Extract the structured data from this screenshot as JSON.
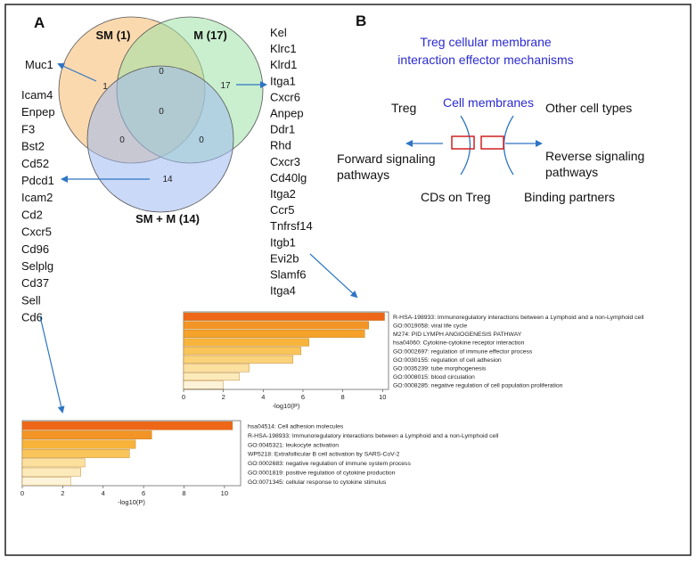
{
  "panel_a": {
    "letter": "A",
    "venn": {
      "sets": [
        {
          "label": "SM (1)",
          "color": "#f9c27e"
        },
        {
          "label": "M (17)",
          "color": "#9fe2a6"
        },
        {
          "label": "SM + M (14)",
          "color": "#9fb9f0"
        }
      ],
      "counts": {
        "sm_only": "1",
        "m_only": "17",
        "sm_m": "0",
        "center": "0",
        "sm_smm": "0",
        "m_smm": "0",
        "smm_only": "14"
      }
    },
    "sm_genes": [
      "Muc1"
    ],
    "smm_genes": [
      "Icam4",
      "Enpep",
      "F3",
      "Bst2",
      "Cd52",
      "Pdcd1",
      "Icam2",
      "Cd2",
      "Cxcr5",
      "Cd96",
      "Selplg",
      "Cd37",
      "Sell",
      "Cd6"
    ],
    "m_genes": [
      "Kel",
      "Klrc1",
      "Klrd1",
      "Itga1",
      "Cxcr6",
      "Anpep",
      "Ddr1",
      "Rhd",
      "Cxcr3",
      "Cd40lg",
      "Itga2",
      "Ccr5",
      "Tnfrsf14",
      "Itgb1",
      "Evi2b",
      "Slamf6",
      "Itga4"
    ]
  },
  "panel_b": {
    "letter": "B",
    "title_line1": "Treg cellular membrane",
    "title_line2": "interaction effector mechanisms",
    "treg": "Treg",
    "cell_membranes": "Cell membranes",
    "other_cell_types": "Other cell types",
    "forward_line1": "Forward signaling",
    "forward_line2": "pathways",
    "reverse_line1": "Reverse signaling",
    "reverse_line2": "pathways",
    "cds_on_treg": "CDs on Treg",
    "binding_partners": "Binding partners",
    "colors": {
      "title": "#2b2bd0",
      "box": "#d02020",
      "arrow": "#2e75c2"
    }
  },
  "chart_data": [
    {
      "type": "bar",
      "orientation": "horizontal",
      "categories": [
        "R-HSA-198933: Immunoregulatory interactions between a Lymphoid and a non-Lymphoid cell",
        "GO:0019058: viral life cycle",
        "M274: PID LYMPH ANGIOGENESIS PATHWAY",
        "hsa04060: Cytokine-cytokine receptor interaction",
        "GO:0002697: regulation of immune effector process",
        "GO:0030155: regulation of cell adhesion",
        "GO:0035239: tube morphogenesis",
        "GO:0008015: blood circulation",
        "GO:0008285: negative regulation of cell population proliferation"
      ],
      "values": [
        10.1,
        9.3,
        9.1,
        6.3,
        5.9,
        5.5,
        3.3,
        2.8,
        2.0
      ],
      "colors": [
        "#ee6618",
        "#f39426",
        "#f5a22b",
        "#f7b33a",
        "#f9c55a",
        "#fad27a",
        "#fbe09e",
        "#fceabb",
        "#fdf3d8"
      ],
      "xlabel": "-log10(P)",
      "xlim": [
        0,
        10.3
      ],
      "xticks": [
        0,
        2,
        4,
        6,
        8,
        10
      ]
    },
    {
      "type": "bar",
      "orientation": "horizontal",
      "categories": [
        "hsa04514: Cell adhesion molecules",
        "R-HSA-198933: Immunoregulatory interactions between a Lymphoid and a non-Lymphoid cell",
        "GO:0045321: leukocyte activation",
        "WP5218: Extrafollicular B cell activation by SARS-CoV-2",
        "GO:0002683: negative regulation of immune system process",
        "GO:0001819: positive regulation of cytokine production",
        "GO:0071345: cellular response to cytokine stimulus"
      ],
      "values": [
        10.4,
        6.4,
        5.6,
        5.3,
        3.1,
        2.9,
        2.4
      ],
      "colors": [
        "#ee6618",
        "#f39426",
        "#f7b33a",
        "#f9c55a",
        "#fbe09e",
        "#fceabb",
        "#fdf3d8"
      ],
      "xlabel": "-log10(P)",
      "xlim": [
        0,
        10.8
      ],
      "xticks": [
        0,
        2,
        4,
        6,
        8,
        10
      ]
    }
  ]
}
